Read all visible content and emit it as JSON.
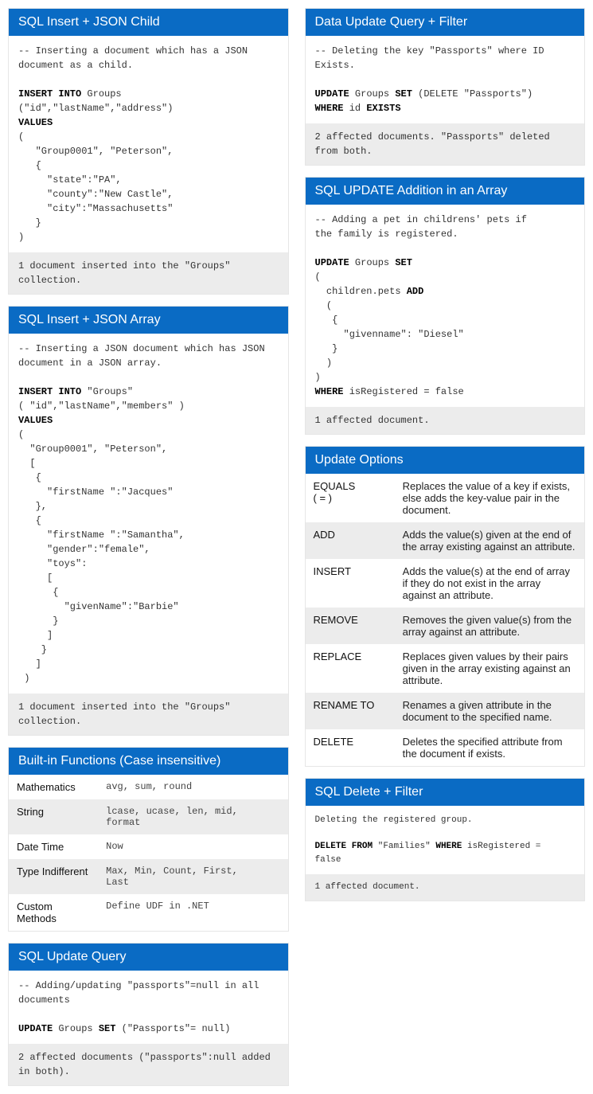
{
  "left": {
    "card1": {
      "title": "SQL Insert + JSON Child",
      "code": "-- Inserting a document which has a JSON\ndocument as a child.\n\n<span class=\"kw\">INSERT INTO</span> Groups\n(\"id\",\"lastName\",\"address\")\n<span class=\"kw\">VALUES</span>\n(\n   \"Group0001\", \"Peterson\",\n   {\n     \"state\":\"PA\",\n     \"county\":\"New Castle\",\n     \"city\":\"Massachusetts\"\n   }\n)",
      "result": "1 document inserted into the \"Groups\"\ncollection."
    },
    "card2": {
      "title": "SQL Insert + JSON Array",
      "code": "-- Inserting a JSON document which has JSON\ndocument in a JSON array.\n\n<span class=\"kw\">INSERT INTO</span> \"Groups\"\n( \"id\",\"lastName\",\"members\" )\n<span class=\"kw\">VALUES</span>\n(\n  \"Group0001\", \"Peterson\",\n  [\n   {\n     \"firstName \":\"Jacques\"\n   },\n   {\n     \"firstName \":\"Samantha\",\n     \"gender\":\"female\",\n     \"toys\":\n     [\n      {\n        \"givenName\":\"Barbie\"\n      }\n     ]\n    }\n   ]\n )",
      "result": "1 document inserted into the \"Groups\"\ncollection."
    },
    "functions": {
      "title": "Built-in Functions (Case insensitive)",
      "rows": [
        {
          "k": "Mathematics",
          "v": "avg, sum, round"
        },
        {
          "k": "String",
          "v": "lcase, ucase, len, mid,\nformat"
        },
        {
          "k": "Date Time",
          "v": "Now"
        },
        {
          "k": "Type Indifferent",
          "v": "Max, Min, Count, First,\nLast"
        },
        {
          "k": "Custom Methods",
          "v": "Define UDF in .NET"
        }
      ]
    },
    "card3": {
      "title": "SQL Update Query",
      "code": "-- Adding/updating \"passports\"=null in all\ndocuments\n\n<span class=\"kw\">UPDATE</span> Groups <span class=\"kw\">SET</span> (\"Passports\"= null)",
      "result": "2 affected documents (\"passports\":null added\nin both)."
    }
  },
  "right": {
    "card1": {
      "title": "Data Update Query + Filter",
      "code": "-- Deleting the key \"Passports\" where ID\nExists.\n\n<span class=\"kw\">UPDATE</span> Groups <span class=\"kw\">SET</span> (DELETE \"Passports\")\n<span class=\"kw\">WHERE</span> id <span class=\"kw\">EXISTS</span>",
      "result": "2 affected documents. \"Passports\" deleted\nfrom both."
    },
    "card2": {
      "title": "SQL UPDATE Addition in an Array",
      "code": "-- Adding a pet in childrens' pets if\nthe family is registered.\n\n<span class=\"kw\">UPDATE</span> Groups <span class=\"kw\">SET</span>\n(\n  children.pets <span class=\"kw\">ADD</span>\n  (\n   {\n     \"givenname\": \"Diesel\"\n   }\n  )\n)\n<span class=\"kw\">WHERE</span> isRegistered = false",
      "result": "1 affected document."
    },
    "options": {
      "title": "Update Options",
      "rows": [
        {
          "k": "EQUALS\n( = )",
          "v": "Replaces the value of a key if exists, else adds the key-value pair in the document."
        },
        {
          "k": "ADD",
          "v": "Adds the value(s) given at the end of the array existing against an attribute."
        },
        {
          "k": "INSERT",
          "v": "Adds the value(s) at the end of array if they do not exist in the array against an attribute."
        },
        {
          "k": "REMOVE",
          "v": "Removes the given value(s) from the array against an attribute."
        },
        {
          "k": "REPLACE",
          "v": "Replaces given values by their pairs given in the array existing against an attribute."
        },
        {
          "k": "RENAME TO",
          "v": "Renames a given attribute in the document to the specified name."
        },
        {
          "k": "DELETE",
          "v": "Deletes the specified attribute from the document if exists."
        }
      ]
    },
    "card3": {
      "title": "SQL Delete + Filter",
      "code": "Deleting the registered group.\n\n<span class=\"kw\">DELETE FROM</span> \"Families\" <span class=\"kw\">WHERE</span> isRegistered =\nfalse",
      "result": "1 affected document."
    }
  }
}
